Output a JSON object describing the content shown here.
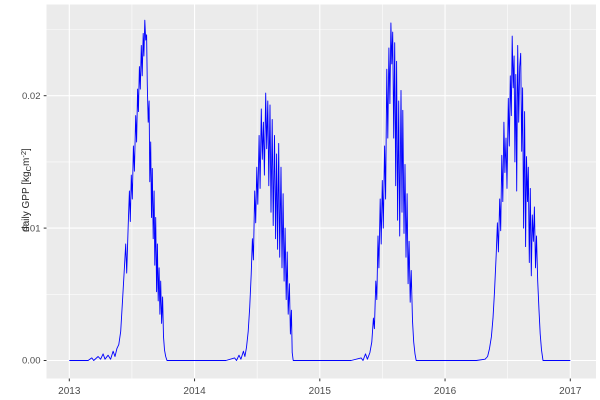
{
  "chart_data": {
    "type": "line",
    "title": "",
    "xlabel": "",
    "ylabel": "daily GPP [kg_C m^-2]",
    "ylabel_parts": {
      "prefix": "daily GPP [kg",
      "sub": "C",
      "mid": "m",
      "sup": "-2",
      "suffix": "]"
    },
    "legend": false,
    "grid": true,
    "panel_bg": "#EBEBEB",
    "grid_color": "#FFFFFF",
    "line_color": "#0000FF",
    "tick_text_color": "#4D4D4D",
    "tick_mark_color": "#333333",
    "xlim": [
      2012.81,
      2017.19
    ],
    "ylim": [
      -0.0013,
      0.0269
    ],
    "x_ticks": [
      {
        "label": "2013",
        "value": 2013
      },
      {
        "label": "2014",
        "value": 2014
      },
      {
        "label": "2015",
        "value": 2015
      },
      {
        "label": "2016",
        "value": 2016
      },
      {
        "label": "2017",
        "value": 2017
      }
    ],
    "x_minor": [
      2013.5,
      2014.5,
      2015.5,
      2016.5
    ],
    "y_ticks": [
      {
        "label": "0.00",
        "value": 0.0
      },
      {
        "label": "0.01",
        "value": 0.01
      },
      {
        "label": "0.02",
        "value": 0.02
      }
    ],
    "y_minor": [
      0.005,
      0.015,
      0.025
    ],
    "series": [
      {
        "name": "daily GPP",
        "points": [
          [
            2013.0,
            0
          ],
          [
            2013.05,
            0
          ],
          [
            2013.1,
            0
          ],
          [
            2013.15,
            0
          ],
          [
            2013.18,
            0.0002
          ],
          [
            2013.195,
            0.0
          ],
          [
            2013.23,
            0.0003
          ],
          [
            2013.25,
            0.0001
          ],
          [
            2013.27,
            0.0005
          ],
          [
            2013.285,
            0.0001
          ],
          [
            2013.31,
            0.0004
          ],
          [
            2013.33,
            0.0001
          ],
          [
            2013.35,
            0.0007
          ],
          [
            2013.365,
            0.0003
          ],
          [
            2013.38,
            0.0009
          ],
          [
            2013.395,
            0.0012
          ],
          [
            2013.41,
            0.0022
          ],
          [
            2013.425,
            0.0045
          ],
          [
            2013.44,
            0.007
          ],
          [
            2013.45,
            0.0088
          ],
          [
            2013.458,
            0.0066
          ],
          [
            2013.47,
            0.0102
          ],
          [
            2013.48,
            0.0128
          ],
          [
            2013.487,
            0.0105
          ],
          [
            2013.495,
            0.014
          ],
          [
            2013.503,
            0.0122
          ],
          [
            2013.512,
            0.0162
          ],
          [
            2013.52,
            0.0143
          ],
          [
            2013.53,
            0.0185
          ],
          [
            2013.537,
            0.0165
          ],
          [
            2013.545,
            0.0205
          ],
          [
            2013.552,
            0.0188
          ],
          [
            2013.56,
            0.0222
          ],
          [
            2013.567,
            0.0205
          ],
          [
            2013.575,
            0.0238
          ],
          [
            2013.582,
            0.0215
          ],
          [
            2013.59,
            0.0247
          ],
          [
            2013.596,
            0.023
          ],
          [
            2013.603,
            0.0257
          ],
          [
            2013.61,
            0.0242
          ],
          [
            2013.617,
            0.0246
          ],
          [
            2013.623,
            0.0208
          ],
          [
            2013.63,
            0.018
          ],
          [
            2013.637,
            0.0196
          ],
          [
            2013.643,
            0.0135
          ],
          [
            2013.65,
            0.0165
          ],
          [
            2013.656,
            0.0108
          ],
          [
            2013.663,
            0.0145
          ],
          [
            2013.67,
            0.0092
          ],
          [
            2013.677,
            0.0128
          ],
          [
            2013.683,
            0.0072
          ],
          [
            2013.69,
            0.0108
          ],
          [
            2013.697,
            0.0052
          ],
          [
            2013.703,
            0.0088
          ],
          [
            2013.71,
            0.0045
          ],
          [
            2013.717,
            0.007
          ],
          [
            2013.723,
            0.0035
          ],
          [
            2013.73,
            0.006
          ],
          [
            2013.737,
            0.0028
          ],
          [
            2013.745,
            0.0048
          ],
          [
            2013.752,
            0.0018
          ],
          [
            2013.76,
            0.0008
          ],
          [
            2013.77,
            0.0003
          ],
          [
            2013.78,
            0.0
          ],
          [
            2013.85,
            0
          ],
          [
            2013.95,
            0
          ],
          [
            2014.05,
            0
          ],
          [
            2014.15,
            0
          ],
          [
            2014.25,
            0
          ],
          [
            2014.32,
            0.0002
          ],
          [
            2014.335,
            0.0
          ],
          [
            2014.355,
            0.0004
          ],
          [
            2014.37,
            0.0001
          ],
          [
            2014.39,
            0.0007
          ],
          [
            2014.402,
            0.0003
          ],
          [
            2014.415,
            0.001
          ],
          [
            2014.428,
            0.0022
          ],
          [
            2014.44,
            0.004
          ],
          [
            2014.452,
            0.0065
          ],
          [
            2014.462,
            0.0092
          ],
          [
            2014.47,
            0.0076
          ],
          [
            2014.48,
            0.0128
          ],
          [
            2014.488,
            0.0104
          ],
          [
            2014.497,
            0.0146
          ],
          [
            2014.505,
            0.0118
          ],
          [
            2014.515,
            0.017
          ],
          [
            2014.523,
            0.013
          ],
          [
            2014.533,
            0.019
          ],
          [
            2014.541,
            0.0152
          ],
          [
            2014.55,
            0.018
          ],
          [
            2014.558,
            0.014
          ],
          [
            2014.568,
            0.0202
          ],
          [
            2014.576,
            0.016
          ],
          [
            2014.585,
            0.0196
          ],
          [
            2014.593,
            0.0132
          ],
          [
            2014.602,
            0.0193
          ],
          [
            2014.61,
            0.0112
          ],
          [
            2014.62,
            0.0182
          ],
          [
            2014.628,
            0.0102
          ],
          [
            2014.638,
            0.017
          ],
          [
            2014.647,
            0.0092
          ],
          [
            2014.655,
            0.0156
          ],
          [
            2014.663,
            0.0084
          ],
          [
            2014.672,
            0.0164
          ],
          [
            2014.68,
            0.0078
          ],
          [
            2014.69,
            0.0146
          ],
          [
            2014.698,
            0.007
          ],
          [
            2014.707,
            0.0126
          ],
          [
            2014.715,
            0.006
          ],
          [
            2014.723,
            0.01
          ],
          [
            2014.732,
            0.0046
          ],
          [
            2014.74,
            0.0082
          ],
          [
            2014.748,
            0.0035
          ],
          [
            2014.757,
            0.0058
          ],
          [
            2014.765,
            0.002
          ],
          [
            2014.773,
            0.0038
          ],
          [
            2014.78,
            0.0006
          ],
          [
            2014.788,
            0.0
          ],
          [
            2014.85,
            0
          ],
          [
            2014.95,
            0
          ],
          [
            2015.05,
            0
          ],
          [
            2015.15,
            0
          ],
          [
            2015.25,
            0
          ],
          [
            2015.33,
            0.0002
          ],
          [
            2015.345,
            0.0
          ],
          [
            2015.365,
            0.0005
          ],
          [
            2015.38,
            0.0001
          ],
          [
            2015.4,
            0.0006
          ],
          [
            2015.415,
            0.0014
          ],
          [
            2015.428,
            0.0032
          ],
          [
            2015.436,
            0.0024
          ],
          [
            2015.447,
            0.006
          ],
          [
            2015.455,
            0.0046
          ],
          [
            2015.465,
            0.0094
          ],
          [
            2015.472,
            0.007
          ],
          [
            2015.482,
            0.0122
          ],
          [
            2015.49,
            0.0088
          ],
          [
            2015.499,
            0.0136
          ],
          [
            2015.507,
            0.01
          ],
          [
            2015.517,
            0.0162
          ],
          [
            2015.525,
            0.0122
          ],
          [
            2015.535,
            0.022
          ],
          [
            2015.543,
            0.0168
          ],
          [
            2015.552,
            0.0236
          ],
          [
            2015.56,
            0.0194
          ],
          [
            2015.568,
            0.0255
          ],
          [
            2015.575,
            0.0224
          ],
          [
            2015.582,
            0.0248
          ],
          [
            2015.59,
            0.0168
          ],
          [
            2015.598,
            0.024
          ],
          [
            2015.606,
            0.0132
          ],
          [
            2015.613,
            0.0226
          ],
          [
            2015.621,
            0.0106
          ],
          [
            2015.63,
            0.0196
          ],
          [
            2015.638,
            0.0094
          ],
          [
            2015.648,
            0.0204
          ],
          [
            2015.656,
            0.0112
          ],
          [
            2015.663,
            0.0189
          ],
          [
            2015.672,
            0.0096
          ],
          [
            2015.68,
            0.0148
          ],
          [
            2015.688,
            0.0078
          ],
          [
            2015.697,
            0.0126
          ],
          [
            2015.705,
            0.0058
          ],
          [
            2015.713,
            0.009
          ],
          [
            2015.722,
            0.0044
          ],
          [
            2015.73,
            0.0068
          ],
          [
            2015.74,
            0.003
          ],
          [
            2015.75,
            0.0014
          ],
          [
            2015.76,
            0.0005
          ],
          [
            2015.77,
            0.0
          ],
          [
            2015.85,
            0
          ],
          [
            2015.95,
            0
          ],
          [
            2016.05,
            0
          ],
          [
            2016.15,
            0
          ],
          [
            2016.25,
            0
          ],
          [
            2016.32,
            0.0001
          ],
          [
            2016.34,
            0.0003
          ],
          [
            2016.355,
            0.0009
          ],
          [
            2016.37,
            0.0018
          ],
          [
            2016.383,
            0.0032
          ],
          [
            2016.395,
            0.0052
          ],
          [
            2016.408,
            0.008
          ],
          [
            2016.418,
            0.0104
          ],
          [
            2016.426,
            0.0082
          ],
          [
            2016.436,
            0.0122
          ],
          [
            2016.444,
            0.0098
          ],
          [
            2016.453,
            0.0155
          ],
          [
            2016.461,
            0.012
          ],
          [
            2016.47,
            0.018
          ],
          [
            2016.478,
            0.0142
          ],
          [
            2016.487,
            0.0168
          ],
          [
            2016.495,
            0.013
          ],
          [
            2016.505,
            0.0198
          ],
          [
            2016.513,
            0.0162
          ],
          [
            2016.521,
            0.0215
          ],
          [
            2016.529,
            0.0185
          ],
          [
            2016.536,
            0.0245
          ],
          [
            2016.544,
            0.0206
          ],
          [
            2016.551,
            0.023
          ],
          [
            2016.558,
            0.015
          ],
          [
            2016.565,
            0.0216
          ],
          [
            2016.572,
            0.0128
          ],
          [
            2016.58,
            0.0238
          ],
          [
            2016.588,
            0.018
          ],
          [
            2016.596,
            0.0222
          ],
          [
            2016.604,
            0.0232
          ],
          [
            2016.612,
            0.0158
          ],
          [
            2016.619,
            0.0206
          ],
          [
            2016.627,
            0.01
          ],
          [
            2016.635,
            0.0188
          ],
          [
            2016.643,
            0.0086
          ],
          [
            2016.65,
            0.0154
          ],
          [
            2016.658,
            0.012
          ],
          [
            2016.665,
            0.0146
          ],
          [
            2016.673,
            0.0074
          ],
          [
            2016.681,
            0.013
          ],
          [
            2016.689,
            0.0064
          ],
          [
            2016.697,
            0.011
          ],
          [
            2016.705,
            0.009
          ],
          [
            2016.713,
            0.0116
          ],
          [
            2016.722,
            0.007
          ],
          [
            2016.73,
            0.0094
          ],
          [
            2016.74,
            0.006
          ],
          [
            2016.75,
            0.0038
          ],
          [
            2016.76,
            0.002
          ],
          [
            2016.77,
            0.0008
          ],
          [
            2016.782,
            0.0
          ],
          [
            2016.85,
            0
          ],
          [
            2016.95,
            0
          ],
          [
            2017.0,
            0
          ]
        ]
      }
    ]
  }
}
